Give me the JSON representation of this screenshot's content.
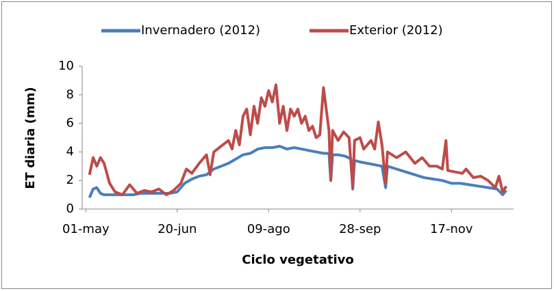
{
  "chart_data": {
    "type": "line",
    "y_label": "ET diaria (mm)",
    "x_label": "Ciclo vegetativo",
    "xlim": [
      -2,
      234
    ],
    "xticks": [
      {
        "value": 0,
        "label": "01-may"
      },
      {
        "value": 50,
        "label": "20-jun"
      },
      {
        "value": 100,
        "label": "09-ago"
      },
      {
        "value": 150,
        "label": "28-sep"
      },
      {
        "value": 200,
        "label": "17-nov"
      }
    ],
    "ylim": [
      0,
      10
    ],
    "yticks": [
      0,
      2,
      4,
      6,
      8,
      10
    ],
    "grid": false,
    "legend": "top",
    "series": [
      {
        "name": "Invernadero (2012)",
        "color": "#4a7ebb",
        "x": [
          2,
          4,
          6,
          8,
          10,
          12,
          14,
          18,
          22,
          26,
          30,
          34,
          38,
          42,
          46,
          50,
          54,
          58,
          62,
          66,
          70,
          74,
          78,
          82,
          86,
          90,
          94,
          98,
          102,
          106,
          110,
          114,
          118,
          122,
          126,
          130,
          133,
          134,
          135,
          138,
          142,
          145,
          146,
          147,
          150,
          154,
          158,
          162,
          164,
          165,
          170,
          175,
          180,
          185,
          190,
          195,
          200,
          205,
          210,
          215,
          220,
          225,
          228,
          230
        ],
        "values": [
          0.8,
          1.4,
          1.5,
          1.1,
          1.0,
          1.0,
          1.0,
          1.0,
          1.0,
          1.0,
          1.1,
          1.1,
          1.1,
          1.1,
          1.1,
          1.2,
          1.8,
          2.1,
          2.3,
          2.4,
          2.8,
          3.0,
          3.2,
          3.5,
          3.8,
          3.9,
          4.2,
          4.3,
          4.3,
          4.4,
          4.2,
          4.3,
          4.2,
          4.1,
          4.0,
          3.9,
          3.9,
          2.0,
          3.8,
          3.8,
          3.7,
          3.5,
          1.4,
          3.4,
          3.3,
          3.2,
          3.1,
          3.0,
          1.5,
          3.0,
          2.8,
          2.6,
          2.4,
          2.2,
          2.1,
          2.0,
          1.8,
          1.8,
          1.7,
          1.6,
          1.5,
          1.4,
          1.0,
          1.3
        ]
      },
      {
        "name": "Exterior (2012)",
        "color": "#be4b48",
        "x": [
          2,
          4,
          6,
          8,
          10,
          13,
          16,
          20,
          24,
          28,
          32,
          36,
          40,
          44,
          48,
          52,
          55,
          58,
          62,
          66,
          68,
          70,
          74,
          78,
          80,
          82,
          84,
          86,
          88,
          90,
          92,
          94,
          96,
          98,
          100,
          102,
          104,
          106,
          108,
          110,
          112,
          114,
          116,
          118,
          120,
          122,
          124,
          126,
          128,
          130,
          132,
          133,
          134,
          135,
          138,
          141,
          144,
          146,
          147,
          150,
          152,
          156,
          158,
          160,
          162,
          164,
          165,
          170,
          175,
          180,
          184,
          188,
          192,
          195,
          197,
          198,
          202,
          206,
          208,
          212,
          216,
          220,
          224,
          226,
          228,
          230
        ],
        "values": [
          2.4,
          3.6,
          3.0,
          3.6,
          3.2,
          1.8,
          1.2,
          1.0,
          1.7,
          1.1,
          1.3,
          1.2,
          1.4,
          1.0,
          1.3,
          1.8,
          2.8,
          2.5,
          3.2,
          3.8,
          2.4,
          4.0,
          4.4,
          4.8,
          4.2,
          5.5,
          4.5,
          6.5,
          7.0,
          5.2,
          7.2,
          6.0,
          7.8,
          7.2,
          8.3,
          7.5,
          8.7,
          6.0,
          7.2,
          5.5,
          7.0,
          6.5,
          7.0,
          6.0,
          6.5,
          5.5,
          5.8,
          5.0,
          5.2,
          8.5,
          6.5,
          5.5,
          2.0,
          5.5,
          4.8,
          5.4,
          5.0,
          1.5,
          4.8,
          5.0,
          4.2,
          4.8,
          4.2,
          6.1,
          4.5,
          1.8,
          4.0,
          3.6,
          4.0,
          3.2,
          3.6,
          3.0,
          3.0,
          2.8,
          4.8,
          2.7,
          2.6,
          2.5,
          2.8,
          2.2,
          2.3,
          2.0,
          1.5,
          2.3,
          1.2,
          1.6
        ]
      }
    ]
  }
}
